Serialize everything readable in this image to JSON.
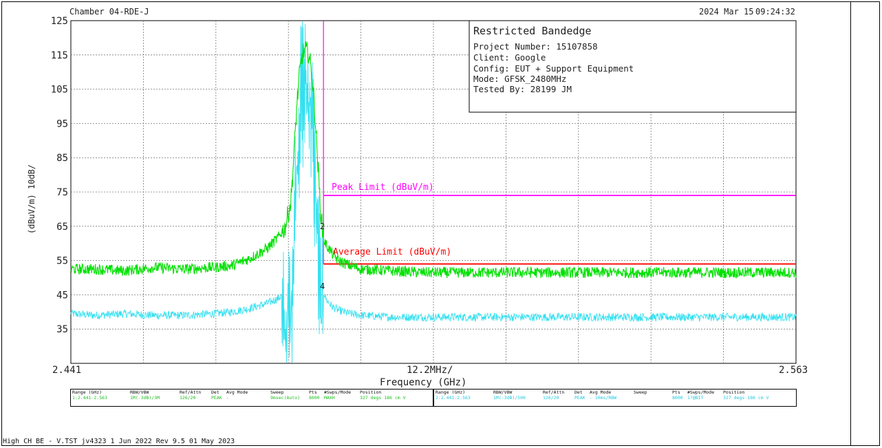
{
  "header": {
    "chamber": "Chamber 04-RDE-J",
    "date": "2024 Mar 15",
    "time": "09:24:32"
  },
  "info_box": {
    "title": "Restricted Bandedge",
    "lines": [
      "Project Number: 15107858",
      "Client: Google",
      "Config: EUT + Support Equipment",
      "Mode: GFSK_2480MHz",
      "Tested By: 28199 JM"
    ]
  },
  "chart_data": {
    "type": "line",
    "ylabel": "(dBuV/m)  10dB/",
    "xlabel": "Frequency (GHz)",
    "x_center_label": "12.2MHz/",
    "x_start_label": "2.441",
    "x_end_label": "2.563",
    "xlim": [
      2.441,
      2.563
    ],
    "ylim": [
      25,
      125
    ],
    "y_ticks": [
      "125",
      "115",
      "105",
      "95",
      "85",
      "75",
      "65",
      "55",
      "45",
      "35"
    ],
    "grid": true,
    "markers": [
      "2",
      "4"
    ],
    "limits": [
      {
        "name": "Peak Limit (dBuV/m)",
        "value": 74,
        "from": 2.483,
        "color": "#ff00ff"
      },
      {
        "name": "Average Limit (dBuV/m)",
        "value": 54,
        "from": 2.483,
        "color": "#ff0000"
      }
    ],
    "band_edge_x": 2.4835,
    "series": [
      {
        "key": "peak",
        "color": "#00e000",
        "x": [
          2.441,
          2.445,
          2.45,
          2.455,
          2.46,
          2.465,
          2.468,
          2.471,
          2.474,
          2.476,
          2.477,
          2.478,
          2.4785,
          2.479,
          2.4795,
          2.48,
          2.4805,
          2.481,
          2.4815,
          2.482,
          2.4825,
          2.483,
          2.4835,
          2.484,
          2.485,
          2.486,
          2.488,
          2.49,
          2.495,
          2.5,
          2.51,
          2.52,
          2.53,
          2.54,
          2.55,
          2.563
        ],
        "y": [
          52.5,
          52.5,
          52.0,
          53.0,
          52.5,
          53.0,
          53.5,
          55.5,
          58.5,
          62.0,
          64.5,
          72.0,
          85.0,
          100.0,
          110.0,
          115.5,
          116.3,
          115.5,
          110.0,
          100.0,
          85.0,
          70.0,
          61.0,
          59.5,
          57.0,
          55.0,
          53.5,
          52.5,
          52.0,
          51.5,
          51.5,
          51.5,
          51.5,
          51.5,
          51.5,
          51.5
        ]
      },
      {
        "key": "average",
        "color": "#33e0f0",
        "x": [
          2.441,
          2.445,
          2.45,
          2.455,
          2.46,
          2.465,
          2.468,
          2.471,
          2.474,
          2.476,
          2.477,
          2.478,
          2.4785,
          2.479,
          2.4795,
          2.48,
          2.4805,
          2.481,
          2.4815,
          2.482,
          2.4825,
          2.483,
          2.4835,
          2.484,
          2.485,
          2.486,
          2.488,
          2.49,
          2.495,
          2.5,
          2.51,
          2.52,
          2.53,
          2.54,
          2.55,
          2.563
        ],
        "y": [
          39.5,
          39.0,
          39.5,
          39.0,
          39.0,
          39.5,
          40.0,
          41.0,
          42.5,
          44.0,
          46.0,
          50.0,
          72.0,
          95.0,
          108.0,
          115.0,
          116.0,
          115.0,
          108.0,
          92.0,
          72.0,
          52.0,
          46.0,
          43.5,
          41.5,
          40.5,
          39.5,
          39.0,
          38.5,
          38.5,
          38.5,
          38.5,
          38.5,
          38.5,
          38.5,
          38.5
        ]
      }
    ]
  },
  "info_tables": {
    "peak": {
      "headers": [
        "Range (GHz)",
        "RBW/VBW",
        "Ref/Attn",
        "Det",
        "Avg Mode",
        "Sweep",
        "Pts",
        "#Swps/Mode",
        "Position"
      ],
      "values": [
        "1:2.441-2.563",
        "1M(-3dB)/3M",
        "126/20",
        "PEAK",
        "-",
        "9msec(Auto)",
        "8000",
        "MAXH",
        "327 degs 186 cm V"
      ]
    },
    "average": {
      "headers": [
        "Range (GHz)",
        "RBW/VBW",
        "Ref/Attn",
        "Det",
        "Avg Mode",
        "Sweep",
        "Pts",
        "#Swps/Mode",
        "Position"
      ],
      "values": [
        "2:2.441-2.563",
        "1M(-3dB)/500",
        "126/20",
        "PEAK",
        "- 10ms/RBW",
        "",
        "8000",
        "1?@BIT",
        "327 degs 186 cm V"
      ]
    }
  },
  "footer": "High CH BE - V.TST jv4323  1 Jun 2022 Rev 9.5 01 May 2023"
}
